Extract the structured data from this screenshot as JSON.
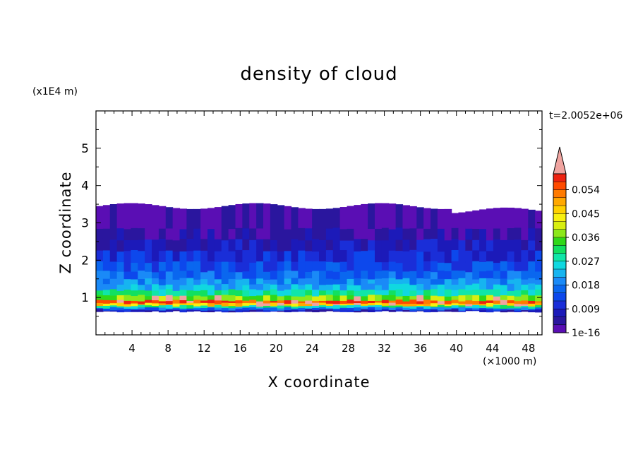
{
  "chart_data": {
    "type": "heatmap",
    "title": "density of cloud",
    "xlabel": "X coordinate",
    "ylabel": "Z coordinate",
    "x_unit": "(×1000 m)",
    "y_unit": "(x1E4 m)",
    "time_label": "t=2.0052e+06",
    "xlim": [
      0,
      49.5
    ],
    "ylim": [
      0,
      6
    ],
    "x_ticks": [
      4,
      8,
      12,
      16,
      20,
      24,
      28,
      32,
      36,
      40,
      44,
      48
    ],
    "y_ticks": [
      1,
      2,
      3,
      4,
      5
    ],
    "colorbar": {
      "labels": [
        {
          "text": "1e-16",
          "level": 0
        },
        {
          "text": "0.009",
          "level": 3
        },
        {
          "text": "0.018",
          "level": 6
        },
        {
          "text": "0.027",
          "level": 9
        },
        {
          "text": "0.036",
          "level": 12
        },
        {
          "text": "0.045",
          "level": 15
        },
        {
          "text": "0.054",
          "level": 18
        }
      ],
      "colors": [
        "#5a0eb4",
        "#2a169e",
        "#1c1ab9",
        "#1a2ed8",
        "#0d48ec",
        "#0a67ef",
        "#1a8af7",
        "#16b4f0",
        "#10d8e0",
        "#10e6a8",
        "#12e060",
        "#30d818",
        "#8ce81a",
        "#d8ee10",
        "#f8f010",
        "#ffd000",
        "#ffa800",
        "#ff7a00",
        "#ff4b00",
        "#ee2210"
      ],
      "overflow_color": "#f0a4a0"
    },
    "cloud_base_z": 0.65,
    "cloud_top_z": 3.45,
    "profile": [
      {
        "z": 3.2,
        "level": 0
      },
      {
        "z": 2.85,
        "level": 1
      },
      {
        "z": 2.55,
        "level": 2
      },
      {
        "z": 2.25,
        "level": 3
      },
      {
        "z": 1.95,
        "level": 4
      },
      {
        "z": 1.7,
        "level": 5
      },
      {
        "z": 1.5,
        "level": 6
      },
      {
        "z": 1.35,
        "level": 7
      },
      {
        "z": 1.2,
        "level": 9
      },
      {
        "z": 1.05,
        "level": 12
      },
      {
        "z": 0.92,
        "level": 18
      },
      {
        "z": 0.84,
        "level": 15
      },
      {
        "z": 0.78,
        "level": 9
      },
      {
        "z": 0.72,
        "level": 5
      },
      {
        "z": 0.67,
        "level": 2
      }
    ]
  }
}
